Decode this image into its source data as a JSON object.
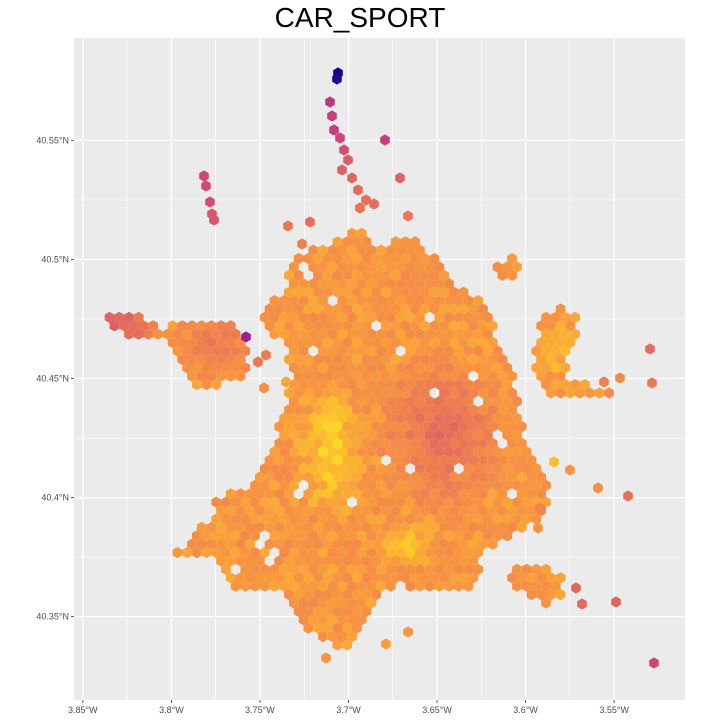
{
  "map": {
    "title": "CAR_SPORT",
    "x_ticks": [
      {
        "value": -3.85,
        "label": "3.85°W"
      },
      {
        "value": -3.8,
        "label": "3.8°W"
      },
      {
        "value": -3.75,
        "label": "3.75°W"
      },
      {
        "value": -3.7,
        "label": "3.7°W"
      },
      {
        "value": -3.65,
        "label": "3.65°W"
      },
      {
        "value": -3.6,
        "label": "3.6°W"
      },
      {
        "value": -3.55,
        "label": "3.55°W"
      }
    ],
    "y_ticks": [
      {
        "value": 40.55,
        "label": "40.55°N"
      },
      {
        "value": 40.5,
        "label": "40.5°N"
      },
      {
        "value": 40.45,
        "label": "40.45°N"
      },
      {
        "value": 40.4,
        "label": "40.4°N"
      },
      {
        "value": 40.35,
        "label": "40.35°N"
      }
    ],
    "lon_range": [
      -3.855,
      -3.51
    ],
    "lat_range": [
      40.315,
      40.593
    ],
    "panel_background": "#ebebeb",
    "grid_color": "#ffffff",
    "colors": {
      "low": "#0d0887",
      "purple": "#7e03a8",
      "magenta": "#cc4778",
      "coral": "#e56b5d",
      "orange": "#f89540",
      "yellow": "#fdca26",
      "bright": "#f0f921"
    }
  }
}
